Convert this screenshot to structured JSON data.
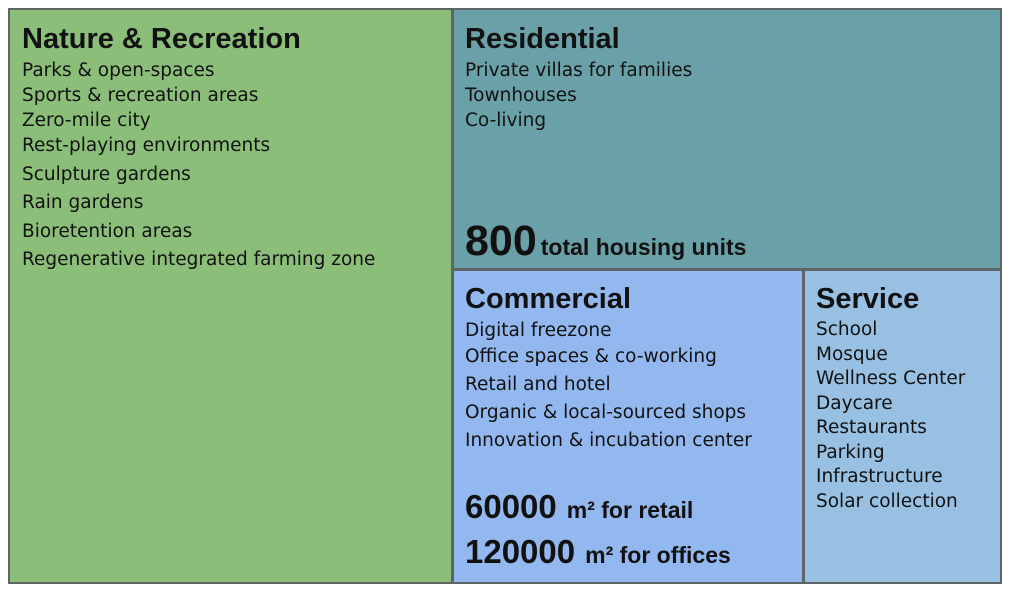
{
  "nature": {
    "title": "Nature & Recreation",
    "items": [
      "Parks & open-spaces",
      "Sports & recreation areas",
      "Zero-mile city",
      "Rest-playing environments",
      "Sculpture gardens",
      "Rain gardens",
      "Bioretention areas",
      "Regenerative integrated farming zone"
    ]
  },
  "residential": {
    "title": "Residential",
    "items": [
      "Private villas for families",
      "Townhouses",
      "Co-living"
    ],
    "stat": {
      "value": "800",
      "label": "total housing units"
    }
  },
  "commercial": {
    "title": "Commercial",
    "items": [
      "Digital freezone",
      "Office spaces & co-working",
      "Retail and hotel",
      "Organic & local-sourced shops",
      "Innovation & incubation center"
    ],
    "stats": [
      {
        "value": "60000",
        "unit": "m² for retail"
      },
      {
        "value": "120000",
        "unit": "m² for offices"
      }
    ]
  },
  "service": {
    "title": "Service",
    "items": [
      "School",
      "Mosque",
      "Wellness Center",
      "Daycare",
      "Restaurants",
      "Parking",
      "Infrastructure",
      "Solar collection"
    ]
  },
  "colors": {
    "nature": "#8bbf79",
    "residential": "#6aa1a8",
    "commercial": "#92b8ef",
    "service": "#97c0e3",
    "border": "#5f6466"
  }
}
